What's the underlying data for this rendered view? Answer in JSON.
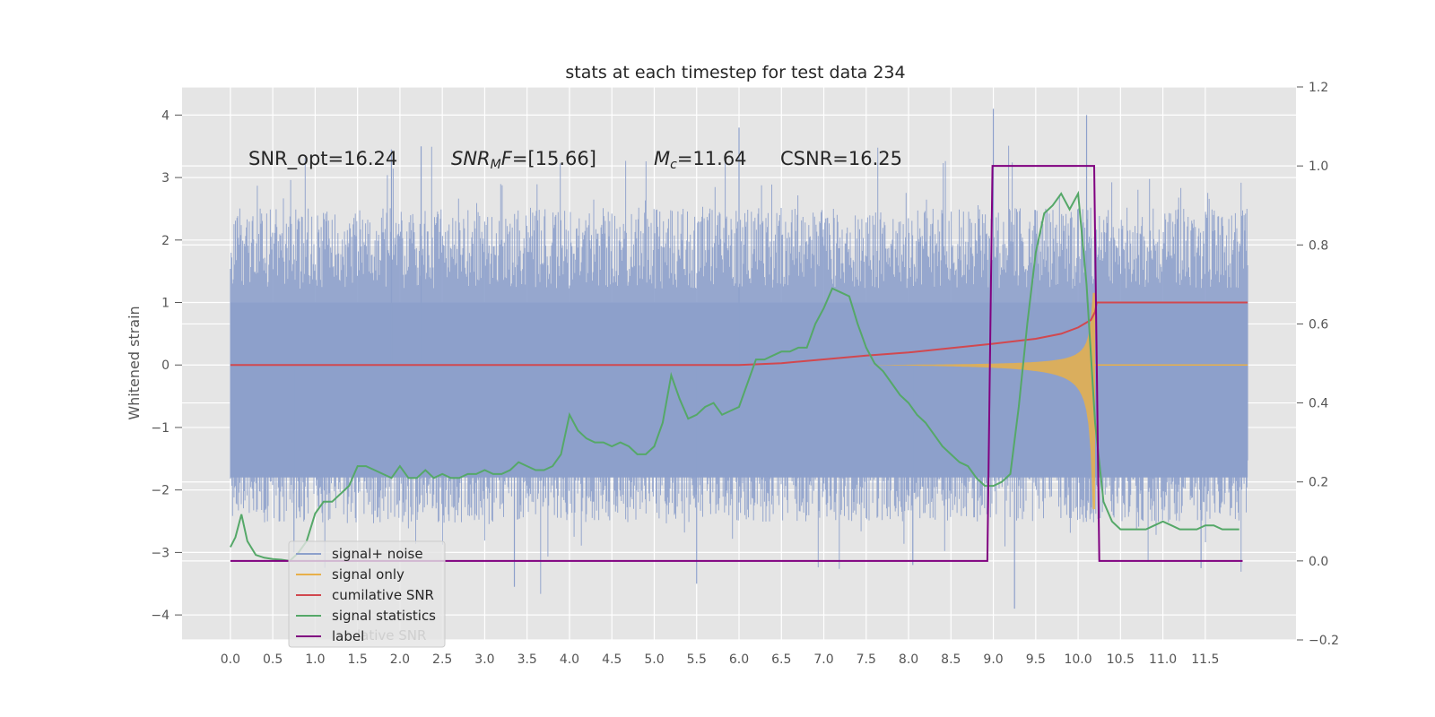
{
  "chart_data": {
    "type": "line",
    "title": "stats at each timestep for test data 234",
    "ylabel": "Whitened strain",
    "xlim": [
      -0.57,
      12.57
    ],
    "ylim": [
      -4.4,
      4.45
    ],
    "y2lim": [
      -0.2,
      1.2
    ],
    "grid": true,
    "legend_position": "lower-left",
    "xticks": [
      "0.0",
      "0.5",
      "1.0",
      "1.5",
      "2.0",
      "2.5",
      "3.0",
      "3.5",
      "4.0",
      "4.5",
      "5.0",
      "5.5",
      "6.0",
      "6.5",
      "7.0",
      "7.5",
      "8.0",
      "8.5",
      "9.0",
      "9.5",
      "10.0",
      "10.5",
      "11.0",
      "11.5"
    ],
    "yticks": [
      "4",
      "3",
      "2",
      "1",
      "0",
      "−1",
      "−2",
      "−3",
      "−4"
    ],
    "y2ticks": [
      "1.2",
      "1.0",
      "0.8",
      "0.6",
      "0.4",
      "0.2",
      "0.0",
      "−0.2"
    ],
    "annotations": {
      "snr_opt": "SNR_opt=16.24",
      "snr_mf_symbol": "SNR",
      "snr_mf_subscript": "M",
      "snr_mf_tail": "F",
      "snr_mf_value": "=[15.66]",
      "mc_symbol": "M",
      "mc_subscript": "c",
      "mc_value": "=11.64",
      "csnr": "CSNR=16.25"
    },
    "legend_residual_text": "lative SNR",
    "colors": {
      "noise": "#8da0cb",
      "signal": "#e8b04a",
      "cumulative": "#d1484f",
      "statistics": "#55a868",
      "label": "#800080",
      "background": "#e5e5e5",
      "grid": "#ffffff"
    },
    "series": [
      {
        "name": "signal+ noise",
        "axis": "left",
        "x_range": [
          0.0,
          12.0
        ],
        "envelope": {
          "upper": 2.0,
          "lower": -2.0,
          "core_upper": 1.0,
          "core_lower": -1.8
        },
        "extremes": {
          "max": 4.1,
          "min": -3.9
        }
      },
      {
        "name": "signal only",
        "axis": "left",
        "chirp": {
          "start": 6.0,
          "merger": 10.2,
          "peak_amplitude": 1.2,
          "end": 12.0
        }
      },
      {
        "name": "cumilative SNR",
        "axis": "left",
        "x": [
          0.0,
          6.0,
          6.5,
          7.0,
          7.5,
          8.0,
          8.5,
          9.0,
          9.5,
          9.8,
          10.0,
          10.15,
          10.2,
          10.22,
          12.0
        ],
        "values": [
          0.0,
          0.0,
          0.03,
          0.09,
          0.15,
          0.2,
          0.27,
          0.34,
          0.42,
          0.5,
          0.6,
          0.72,
          0.85,
          1.0,
          1.0
        ]
      },
      {
        "name": "signal statistics",
        "axis": "right",
        "x": [
          0.0,
          0.06,
          0.13,
          0.2,
          0.3,
          0.4,
          0.5,
          0.6,
          0.7,
          0.8,
          0.9,
          1.0,
          1.1,
          1.2,
          1.3,
          1.4,
          1.5,
          1.6,
          1.7,
          1.8,
          1.9,
          2.0,
          2.1,
          2.2,
          2.3,
          2.4,
          2.5,
          2.6,
          2.7,
          2.8,
          2.9,
          3.0,
          3.1,
          3.2,
          3.3,
          3.4,
          3.5,
          3.6,
          3.7,
          3.8,
          3.9,
          4.0,
          4.1,
          4.2,
          4.3,
          4.4,
          4.5,
          4.6,
          4.7,
          4.8,
          4.9,
          5.0,
          5.1,
          5.2,
          5.3,
          5.4,
          5.5,
          5.6,
          5.7,
          5.8,
          5.9,
          6.0,
          6.1,
          6.2,
          6.3,
          6.4,
          6.5,
          6.6,
          6.7,
          6.8,
          6.9,
          7.0,
          7.1,
          7.2,
          7.3,
          7.4,
          7.5,
          7.6,
          7.7,
          7.8,
          7.9,
          8.0,
          8.1,
          8.2,
          8.3,
          8.4,
          8.5,
          8.6,
          8.7,
          8.8,
          8.9,
          9.0,
          9.1,
          9.2,
          9.3,
          9.4,
          9.5,
          9.6,
          9.7,
          9.8,
          9.9,
          10.0,
          10.1,
          10.2,
          10.3,
          10.4,
          10.5,
          10.6,
          10.7,
          10.8,
          10.9,
          11.0,
          11.1,
          11.2,
          11.3,
          11.4,
          11.5,
          11.6,
          11.7,
          11.8,
          11.9
        ],
        "values": [
          0.035,
          0.06,
          0.118,
          0.05,
          0.015,
          0.008,
          0.005,
          0.003,
          0.0,
          0.02,
          0.05,
          0.12,
          0.15,
          0.15,
          0.17,
          0.19,
          0.24,
          0.24,
          0.23,
          0.22,
          0.21,
          0.24,
          0.21,
          0.21,
          0.23,
          0.21,
          0.22,
          0.21,
          0.21,
          0.22,
          0.22,
          0.23,
          0.22,
          0.22,
          0.23,
          0.25,
          0.24,
          0.23,
          0.23,
          0.24,
          0.27,
          0.37,
          0.33,
          0.31,
          0.3,
          0.3,
          0.29,
          0.3,
          0.29,
          0.27,
          0.27,
          0.29,
          0.35,
          0.47,
          0.41,
          0.36,
          0.37,
          0.39,
          0.4,
          0.37,
          0.38,
          0.39,
          0.45,
          0.51,
          0.51,
          0.52,
          0.53,
          0.53,
          0.54,
          0.54,
          0.6,
          0.64,
          0.69,
          0.68,
          0.67,
          0.6,
          0.54,
          0.5,
          0.48,
          0.45,
          0.42,
          0.4,
          0.37,
          0.35,
          0.32,
          0.29,
          0.27,
          0.25,
          0.24,
          0.21,
          0.19,
          0.19,
          0.2,
          0.22,
          0.39,
          0.6,
          0.78,
          0.88,
          0.9,
          0.93,
          0.89,
          0.93,
          0.7,
          0.35,
          0.15,
          0.1,
          0.08,
          0.08,
          0.08,
          0.08,
          0.09,
          0.1,
          0.09,
          0.08,
          0.08,
          0.08,
          0.09,
          0.09,
          0.08,
          0.08,
          0.08
        ],
        "scale_note": ""
      },
      {
        "name": "label",
        "axis": "right",
        "x": [
          0.0,
          8.93,
          8.99,
          10.19,
          10.25,
          11.94
        ],
        "values": [
          0.0,
          0.0,
          1.0,
          1.0,
          0.0,
          0.0
        ]
      }
    ]
  }
}
